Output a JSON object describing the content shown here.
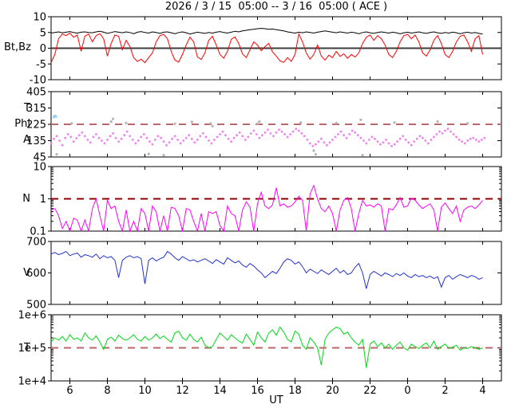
{
  "title": "2026 / 3 / 15  05:00 -- 3 / 16  05:00 ( ACE )",
  "x_axis": {
    "label": "UT",
    "range_hours": [
      5,
      29
    ],
    "tick_hours": [
      6,
      8,
      10,
      12,
      14,
      16,
      18,
      20,
      22,
      24,
      26,
      28
    ],
    "tick_labels": [
      "6",
      "8",
      "10",
      "12",
      "14",
      "16",
      "18",
      "20",
      "22",
      "0",
      "2",
      "4"
    ]
  },
  "colors": {
    "frame": "#000000",
    "bt": "#000000",
    "bz": "#ff0000",
    "zero_line": "#3c3c3c",
    "phi_dots": "#ee82ee",
    "phi_gray_dots": "#b4b4b4",
    "phi_cyan_dots": "#8fd3f2",
    "dashed_rosy": "#b86a6a",
    "dashed_darkred": "#8b0000",
    "n_line": "#ff00ff",
    "v_line": "#2233cc",
    "t_line": "#00d816"
  },
  "chart_data": [
    {
      "type": "line",
      "ylabel": "Bt,Bz",
      "log": false,
      "ylim": [
        -10,
        10
      ],
      "yticks": [
        [
          -10,
          "-10"
        ],
        [
          -5,
          "-5"
        ],
        [
          0,
          "0"
        ],
        [
          5,
          "5"
        ],
        [
          10,
          "10"
        ]
      ],
      "ref_lines": [
        {
          "y": 0,
          "style": "solid",
          "color": "#3c3c3c",
          "w": 2
        }
      ],
      "x_start": 5,
      "x_step": 0.2,
      "series": [
        {
          "name": "Bt",
          "color": "#000000",
          "values": [
            4.8,
            5.0,
            5.2,
            4.9,
            5.1,
            5.3,
            5.0,
            4.8,
            5.1,
            5.2,
            5.0,
            4.9,
            5.2,
            5.4,
            5.1,
            4.7,
            5.0,
            5.3,
            5.1,
            4.9,
            5.2,
            5.0,
            4.6,
            5.1,
            5.3,
            5.0,
            4.8,
            5.2,
            5.0,
            4.7,
            5.1,
            5.2,
            4.9,
            4.6,
            5.0,
            5.2,
            4.9,
            4.5,
            4.8,
            5.1,
            4.9,
            4.7,
            5.0,
            4.8,
            5.1,
            5.3,
            5.0,
            4.8,
            5.1,
            5.4,
            5.2,
            5.5,
            5.7,
            5.9,
            6.0,
            6.2,
            6.3,
            6.2,
            6.0,
            6.1,
            5.9,
            5.7,
            5.5,
            5.2,
            5.0,
            4.8,
            5.1,
            4.9,
            5.2,
            5.0,
            4.8,
            5.1,
            5.3,
            5.5,
            5.3,
            5.1,
            4.9,
            5.2,
            5.0,
            4.8,
            5.1,
            4.9,
            4.6,
            5.0,
            5.2,
            4.9,
            4.7,
            5.0,
            5.2,
            5.0,
            4.8,
            5.1,
            4.9,
            4.6,
            4.9,
            5.1,
            4.8,
            5.0,
            5.2,
            4.9,
            4.7,
            5.0,
            5.2,
            4.9,
            4.7,
            5.0,
            4.8,
            5.1,
            4.9,
            4.6,
            4.9,
            5.1,
            4.8,
            5.0,
            4.7,
            4.5
          ]
        },
        {
          "name": "Bz",
          "color": "#ff0000",
          "values": [
            -4.5,
            -2.0,
            3.0,
            4.5,
            4.0,
            4.8,
            3.5,
            4.2,
            -1.0,
            3.8,
            4.5,
            2.0,
            4.0,
            4.6,
            3.0,
            -2.5,
            1.5,
            4.2,
            3.8,
            -0.5,
            2.5,
            0.5,
            -3.0,
            -4.2,
            -3.5,
            -4.6,
            -3.0,
            -1.5,
            2.0,
            4.0,
            4.4,
            3.0,
            -1.0,
            -3.8,
            -4.4,
            -2.0,
            1.0,
            3.5,
            2.0,
            -2.8,
            -3.6,
            -1.5,
            2.5,
            3.8,
            1.0,
            -2.0,
            -3.2,
            -1.0,
            2.8,
            3.6,
            1.5,
            -1.8,
            -3.0,
            -0.5,
            2.0,
            1.0,
            -0.8,
            0.5,
            1.5,
            -1.2,
            -2.5,
            -4.0,
            -4.5,
            -3.0,
            -4.2,
            -2.0,
            4.5,
            2.0,
            -1.5,
            -3.5,
            -2.0,
            1.0,
            -2.5,
            -3.8,
            -2.2,
            -3.0,
            -1.0,
            -2.6,
            -1.8,
            -3.2,
            -2.0,
            -2.8,
            -1.5,
            1.5,
            3.5,
            4.2,
            2.5,
            4.0,
            3.0,
            1.0,
            -2.0,
            -3.0,
            -1.0,
            2.0,
            4.0,
            4.4,
            3.0,
            4.2,
            2.0,
            -1.5,
            -2.5,
            -0.5,
            2.5,
            4.0,
            1.5,
            -2.0,
            -3.0,
            -1.0,
            2.0,
            3.8,
            4.2,
            2.0,
            -1.0,
            3.0,
            4.0,
            -2.0
          ]
        }
      ]
    },
    {
      "type": "scatter",
      "log": false,
      "ylabels": [
        {
          "text": "T",
          "y": 315
        },
        {
          "text": "Phi",
          "y": 225
        },
        {
          "text": "A",
          "y": 135
        }
      ],
      "ylim": [
        45,
        405
      ],
      "yticks": [
        [
          45,
          "45"
        ],
        [
          135,
          "135"
        ],
        [
          225,
          "225"
        ],
        [
          315,
          "315"
        ],
        [
          405,
          "405"
        ]
      ],
      "ref_lines": [
        {
          "y": 225,
          "style": "dashed",
          "color": "#b86a6a",
          "w": 2
        }
      ],
      "series": [
        {
          "name": "Phi",
          "color": "#ee82ee",
          "x_start": 5,
          "x_step": 0.15,
          "values": [
            120,
            145,
            160,
            135,
            110,
            150,
            170,
            155,
            130,
            148,
            165,
            180,
            160,
            140,
            125,
            155,
            170,
            150,
            135,
            120,
            140,
            160,
            175,
            150,
            130,
            145,
            165,
            185,
            160,
            140,
            120,
            135,
            155,
            170,
            150,
            130,
            115,
            140,
            160,
            150,
            130,
            110,
            125,
            145,
            160,
            140,
            120,
            135,
            150,
            165,
            145,
            125,
            140,
            160,
            175,
            155,
            135,
            120,
            140,
            155,
            170,
            185,
            165,
            145,
            130,
            150,
            165,
            180,
            160,
            140,
            155,
            175,
            190,
            170,
            150,
            165,
            180,
            195,
            175,
            160,
            180,
            195,
            185,
            170,
            155,
            170,
            185,
            200,
            190,
            175,
            160,
            140,
            120,
            105,
            115,
            130,
            145,
            125,
            110,
            125,
            140,
            155,
            170,
            185,
            165,
            150,
            170,
            190,
            180,
            165,
            150,
            135,
            120,
            140,
            155,
            145,
            130,
            115,
            125,
            140,
            120,
            105,
            115,
            130,
            145,
            160,
            140,
            125,
            110,
            130,
            145,
            160,
            150,
            135,
            120,
            140,
            155,
            170,
            185,
            175,
            190,
            200,
            185,
            170,
            155,
            140,
            130,
            120,
            135,
            145,
            150,
            140,
            130,
            140,
            150
          ]
        },
        {
          "name": "Phi-uncertain",
          "color": "#b4b4b4",
          "points": [
            [
              5.3,
              60
            ],
            [
              6.1,
              230
            ],
            [
              8.2,
              240
            ],
            [
              8.3,
              255
            ],
            [
              9.0,
              232
            ],
            [
              10.2,
              62
            ],
            [
              11.0,
              55
            ],
            [
              11.6,
              228
            ],
            [
              12.5,
              238
            ],
            [
              13.5,
              230
            ],
            [
              13.6,
              215
            ],
            [
              16.0,
              228
            ],
            [
              16.1,
              240
            ],
            [
              18.3,
              235
            ],
            [
              19.0,
              80
            ],
            [
              19.1,
              60
            ],
            [
              20.2,
              232
            ],
            [
              21.5,
              250
            ],
            [
              21.6,
              55
            ],
            [
              23.3,
              235
            ],
            [
              25.6,
              240
            ],
            [
              27.2,
              230
            ]
          ]
        },
        {
          "name": "Phi-flag",
          "color": "#8fd3f2",
          "points": [
            [
              5.15,
              265
            ],
            [
              5.2,
              272
            ],
            [
              5.25,
              268
            ]
          ]
        }
      ]
    },
    {
      "type": "line",
      "ylabel": "N",
      "log": true,
      "ylim": [
        0.1,
        10
      ],
      "yticks": [
        [
          0.1,
          "0.1"
        ],
        [
          1,
          "1"
        ],
        [
          10,
          "10"
        ]
      ],
      "ref_lines": [
        {
          "y": 1,
          "style": "dashed",
          "color": "#8b0000",
          "w": 2
        }
      ],
      "x_start": 5,
      "x_step": 0.2,
      "series": [
        {
          "name": "N",
          "color": "#ff00ff",
          "values": [
            0.45,
            0.5,
            0.3,
            0.12,
            0.2,
            0.1,
            0.25,
            0.22,
            0.1,
            0.22,
            0.1,
            0.5,
            1.0,
            0.3,
            0.1,
            0.9,
            0.5,
            0.6,
            0.2,
            0.1,
            0.45,
            0.1,
            0.2,
            0.1,
            0.5,
            0.35,
            0.1,
            0.6,
            0.4,
            0.1,
            0.3,
            0.1,
            0.55,
            0.5,
            0.3,
            0.1,
            0.5,
            0.45,
            0.2,
            0.1,
            0.35,
            0.1,
            0.4,
            0.35,
            0.4,
            0.15,
            0.1,
            0.6,
            0.35,
            0.3,
            0.1,
            0.45,
            0.8,
            0.55,
            0.1,
            0.7,
            1.6,
            0.6,
            0.5,
            0.65,
            2.2,
            0.6,
            0.7,
            0.55,
            0.6,
            0.8,
            1.2,
            0.9,
            0.1,
            1.4,
            2.6,
            1.0,
            0.5,
            0.4,
            0.6,
            0.35,
            0.1,
            0.45,
            0.9,
            1.1,
            0.5,
            0.1,
            0.35,
            0.9,
            0.6,
            0.65,
            0.55,
            0.7,
            0.6,
            0.1,
            0.5,
            0.45,
            0.65,
            1.1,
            0.55,
            0.6,
            1.05,
            0.9,
            0.65,
            0.5,
            0.6,
            0.7,
            0.45,
            0.1,
            0.55,
            0.75,
            0.5,
            0.35,
            0.6,
            0.2,
            0.45,
            0.55,
            0.6,
            0.5,
            0.65,
            0.9
          ]
        }
      ]
    },
    {
      "type": "line",
      "ylabel": "V",
      "log": false,
      "ylim": [
        500,
        700
      ],
      "yticks": [
        [
          500,
          "500"
        ],
        [
          600,
          "600"
        ],
        [
          700,
          "700"
        ]
      ],
      "ref_lines": [],
      "x_start": 5,
      "x_step": 0.2,
      "series": [
        {
          "name": "V",
          "color": "#2233cc",
          "values": [
            660,
            665,
            658,
            662,
            668,
            655,
            660,
            663,
            650,
            658,
            655,
            650,
            660,
            645,
            655,
            648,
            652,
            640,
            585,
            640,
            650,
            655,
            648,
            652,
            645,
            565,
            640,
            648,
            638,
            645,
            650,
            668,
            660,
            648,
            640,
            652,
            645,
            638,
            642,
            635,
            640,
            645,
            638,
            630,
            642,
            635,
            628,
            648,
            640,
            632,
            638,
            625,
            618,
            630,
            622,
            610,
            600,
            585,
            595,
            605,
            598,
            615,
            635,
            645,
            640,
            628,
            635,
            620,
            600,
            612,
            605,
            598,
            610,
            602,
            595,
            605,
            615,
            600,
            608,
            595,
            600,
            618,
            630,
            600,
            550,
            595,
            605,
            598,
            590,
            600,
            595,
            588,
            598,
            592,
            600,
            590,
            585,
            595,
            588,
            592,
            585,
            590,
            582,
            588,
            555,
            585,
            592,
            580,
            588,
            595,
            590,
            585,
            592,
            588,
            580,
            585
          ]
        }
      ]
    },
    {
      "type": "line",
      "ylabel": "T",
      "log": true,
      "ylim": [
        10000,
        1000000
      ],
      "yticks": [
        [
          10000,
          "1e+4"
        ],
        [
          100000,
          "1e+5"
        ],
        [
          1000000,
          "1e+6"
        ]
      ],
      "ref_lines": [
        {
          "y": 100000,
          "style": "dashed",
          "color": "#b86a6a",
          "w": 2
        }
      ],
      "x_start": 5,
      "x_step": 0.2,
      "series": [
        {
          "name": "T",
          "color": "#00d816",
          "values": [
            150000,
            200000,
            170000,
            220000,
            160000,
            250000,
            180000,
            200000,
            160000,
            280000,
            200000,
            170000,
            230000,
            150000,
            90000,
            180000,
            210000,
            160000,
            240000,
            190000,
            170000,
            200000,
            250000,
            180000,
            160000,
            220000,
            170000,
            200000,
            260000,
            190000,
            230000,
            180000,
            150000,
            280000,
            320000,
            200000,
            170000,
            260000,
            180000,
            150000,
            210000,
            120000,
            100000,
            110000,
            180000,
            280000,
            220000,
            170000,
            250000,
            200000,
            160000,
            140000,
            260000,
            180000,
            120000,
            300000,
            200000,
            150000,
            280000,
            350000,
            240000,
            420000,
            300000,
            180000,
            150000,
            320000,
            260000,
            120000,
            90000,
            200000,
            150000,
            100000,
            30000,
            180000,
            280000,
            350000,
            420000,
            380000,
            260000,
            300000,
            200000,
            150000,
            120000,
            180000,
            25000,
            130000,
            160000,
            110000,
            140000,
            100000,
            130000,
            90000,
            120000,
            150000,
            100000,
            85000,
            130000,
            110000,
            95000,
            120000,
            140000,
            100000,
            160000,
            90000,
            110000,
            130000,
            95000,
            105000,
            120000,
            85000,
            100000,
            95000,
            110000,
            100000,
            90000,
            100000
          ]
        }
      ]
    }
  ]
}
